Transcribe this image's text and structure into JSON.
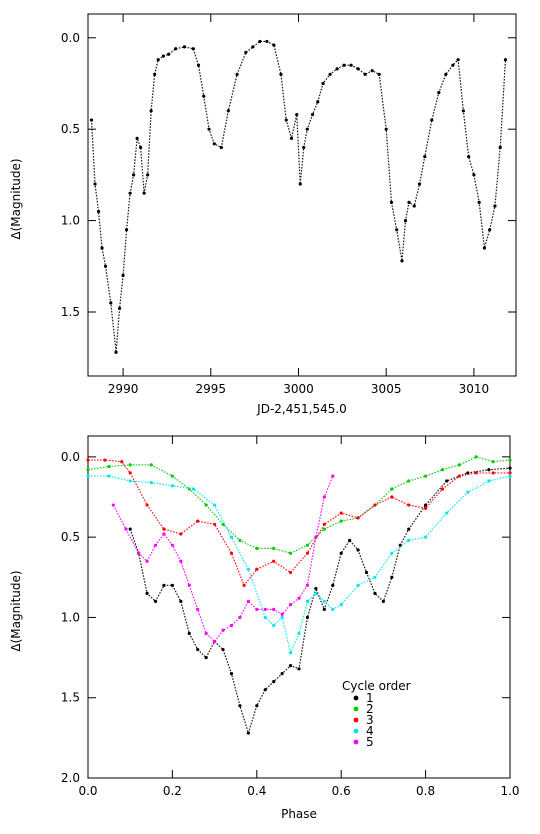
{
  "chart_data": [
    {
      "type": "scatter",
      "title": "",
      "xlabel": "JD-2,451,545.0",
      "ylabel": "Δ(Magnitude)",
      "xlim": [
        2988.0,
        3012.4
      ],
      "ylim": [
        1.85,
        -0.13
      ],
      "y_inverted": true,
      "x_ticks": [
        2990,
        2995,
        3000,
        3005,
        3010
      ],
      "x_tick_labels": [
        "2990",
        "2995",
        "3000",
        "3005",
        "3010"
      ],
      "y_ticks": [
        0.0,
        0.5,
        1.0,
        1.5
      ],
      "y_tick_labels": [
        "0.0",
        "0.5",
        "1.0",
        "1.5"
      ],
      "grid": false,
      "series": [
        {
          "color": "#000000",
          "x": [
            2988.2,
            2988.4,
            2988.6,
            2988.8,
            2989.0,
            2989.3,
            2989.6,
            2989.8,
            2990.0,
            2990.2,
            2990.4,
            2990.6,
            2990.8,
            2991.0,
            2991.2,
            2991.4,
            2991.6,
            2991.8,
            2992.0,
            2992.3,
            2992.6,
            2993.0,
            2993.5,
            2994.0,
            2994.3,
            2994.6,
            2994.9,
            2995.2,
            2995.6,
            2996.0,
            2996.5,
            2997.0,
            2997.4,
            2997.8,
            2998.2,
            2998.6,
            2999.0,
            2999.3,
            2999.6,
            2999.9,
            3000.1,
            3000.3,
            3000.5,
            3000.8,
            3001.1,
            3001.4,
            3001.8,
            3002.2,
            3002.6,
            3003.0,
            3003.4,
            3003.8,
            3004.2,
            3004.6,
            3005.0,
            3005.3,
            3005.6,
            3005.9,
            3006.1,
            3006.3,
            3006.6,
            3006.9,
            3007.2,
            3007.6,
            3008.0,
            3008.4,
            3008.8,
            3009.1,
            3009.4,
            3009.7,
            3010.0,
            3010.3,
            3010.6,
            3010.9,
            3011.2,
            3011.5,
            3011.8
          ],
          "y": [
            0.45,
            0.8,
            0.95,
            1.15,
            1.25,
            1.45,
            1.72,
            1.48,
            1.3,
            1.05,
            0.85,
            0.75,
            0.55,
            0.6,
            0.85,
            0.75,
            0.4,
            0.2,
            0.12,
            0.1,
            0.09,
            0.06,
            0.05,
            0.06,
            0.15,
            0.32,
            0.5,
            0.58,
            0.6,
            0.4,
            0.2,
            0.08,
            0.05,
            0.02,
            0.02,
            0.04,
            0.2,
            0.45,
            0.55,
            0.42,
            0.8,
            0.6,
            0.5,
            0.42,
            0.35,
            0.25,
            0.2,
            0.17,
            0.15,
            0.15,
            0.17,
            0.2,
            0.18,
            0.2,
            0.5,
            0.9,
            1.05,
            1.22,
            1.0,
            0.9,
            0.92,
            0.8,
            0.65,
            0.45,
            0.3,
            0.2,
            0.15,
            0.12,
            0.4,
            0.65,
            0.75,
            0.9,
            1.15,
            1.05,
            0.92,
            0.6,
            0.12
          ]
        }
      ]
    },
    {
      "type": "scatter",
      "title": "",
      "xlabel": "Phase",
      "ylabel": "Δ(Magnitude)",
      "xlim": [
        0.0,
        1.0
      ],
      "ylim": [
        2.0,
        -0.13
      ],
      "y_inverted": true,
      "x_ticks": [
        0.0,
        0.2,
        0.4,
        0.6,
        0.8,
        1.0
      ],
      "x_tick_labels": [
        "0.0",
        "0.2",
        "0.4",
        "0.6",
        "0.8",
        "1.0"
      ],
      "y_ticks": [
        0.0,
        0.5,
        1.0,
        1.5,
        2.0
      ],
      "y_tick_labels": [
        "0.0",
        "0.5",
        "1.0",
        "1.5",
        "2.0"
      ],
      "grid": false,
      "legend": {
        "title": "Cycle order",
        "placement": "bottom-right",
        "entries": [
          "1",
          "2",
          "3",
          "4",
          "5"
        ]
      },
      "series": [
        {
          "name": "1",
          "color": "#000000",
          "x": [
            0.1,
            0.12,
            0.14,
            0.16,
            0.18,
            0.2,
            0.22,
            0.24,
            0.26,
            0.28,
            0.3,
            0.32,
            0.34,
            0.36,
            0.38,
            0.4,
            0.42,
            0.44,
            0.46,
            0.48,
            0.5,
            0.52,
            0.54,
            0.56,
            0.58,
            0.6,
            0.62,
            0.64,
            0.66,
            0.68,
            0.7,
            0.72,
            0.74,
            0.76,
            0.8,
            0.85,
            0.9,
            0.95,
            1.0
          ],
          "y": [
            0.45,
            0.6,
            0.85,
            0.9,
            0.8,
            0.8,
            0.9,
            1.1,
            1.2,
            1.25,
            1.15,
            1.2,
            1.35,
            1.55,
            1.72,
            1.55,
            1.45,
            1.4,
            1.35,
            1.3,
            1.32,
            1.0,
            0.82,
            0.95,
            0.8,
            0.6,
            0.52,
            0.58,
            0.72,
            0.85,
            0.9,
            0.75,
            0.55,
            0.45,
            0.3,
            0.15,
            0.1,
            0.08,
            0.07
          ]
        },
        {
          "name": "2",
          "color": "#00cc00",
          "x": [
            0.0,
            0.05,
            0.1,
            0.15,
            0.2,
            0.24,
            0.28,
            0.32,
            0.36,
            0.4,
            0.44,
            0.48,
            0.52,
            0.56,
            0.6,
            0.64,
            0.68,
            0.72,
            0.76,
            0.8,
            0.84,
            0.88,
            0.92,
            0.96,
            1.0
          ],
          "y": [
            0.08,
            0.06,
            0.05,
            0.05,
            0.12,
            0.2,
            0.3,
            0.42,
            0.52,
            0.57,
            0.57,
            0.6,
            0.55,
            0.45,
            0.4,
            0.38,
            0.3,
            0.2,
            0.15,
            0.12,
            0.08,
            0.05,
            0.0,
            0.03,
            0.02
          ]
        },
        {
          "name": "3",
          "color": "#ff0000",
          "x": [
            0.0,
            0.04,
            0.08,
            0.1,
            0.14,
            0.18,
            0.22,
            0.26,
            0.3,
            0.34,
            0.37,
            0.4,
            0.44,
            0.48,
            0.52,
            0.56,
            0.6,
            0.64,
            0.68,
            0.72,
            0.76,
            0.8,
            0.84,
            0.88,
            0.92,
            0.96,
            1.0
          ],
          "y": [
            0.02,
            0.02,
            0.03,
            0.1,
            0.3,
            0.45,
            0.48,
            0.4,
            0.42,
            0.6,
            0.8,
            0.7,
            0.65,
            0.72,
            0.6,
            0.42,
            0.35,
            0.38,
            0.3,
            0.25,
            0.3,
            0.32,
            0.2,
            0.12,
            0.1,
            0.1,
            0.1
          ]
        },
        {
          "name": "4",
          "color": "#00e5ee",
          "x": [
            0.0,
            0.05,
            0.1,
            0.15,
            0.2,
            0.25,
            0.3,
            0.34,
            0.38,
            0.42,
            0.44,
            0.46,
            0.48,
            0.5,
            0.52,
            0.54,
            0.56,
            0.58,
            0.6,
            0.64,
            0.68,
            0.72,
            0.76,
            0.8,
            0.85,
            0.9,
            0.95,
            1.0
          ],
          "y": [
            0.12,
            0.12,
            0.15,
            0.16,
            0.18,
            0.2,
            0.3,
            0.5,
            0.7,
            1.0,
            1.05,
            1.0,
            1.22,
            1.1,
            0.9,
            0.85,
            0.9,
            0.95,
            0.92,
            0.8,
            0.75,
            0.6,
            0.52,
            0.5,
            0.35,
            0.22,
            0.15,
            0.12
          ]
        },
        {
          "name": "5",
          "color": "#ff00ff",
          "x": [
            0.06,
            0.09,
            0.12,
            0.14,
            0.16,
            0.18,
            0.2,
            0.22,
            0.24,
            0.26,
            0.28,
            0.3,
            0.32,
            0.34,
            0.36,
            0.38,
            0.4,
            0.42,
            0.44,
            0.46,
            0.48,
            0.5,
            0.52,
            0.54,
            0.56,
            0.58
          ],
          "y": [
            0.3,
            0.45,
            0.6,
            0.65,
            0.55,
            0.48,
            0.55,
            0.65,
            0.8,
            0.95,
            1.1,
            1.15,
            1.08,
            1.05,
            1.0,
            0.9,
            0.95,
            0.95,
            0.95,
            0.98,
            0.92,
            0.88,
            0.8,
            0.5,
            0.25,
            0.12
          ]
        }
      ]
    }
  ]
}
